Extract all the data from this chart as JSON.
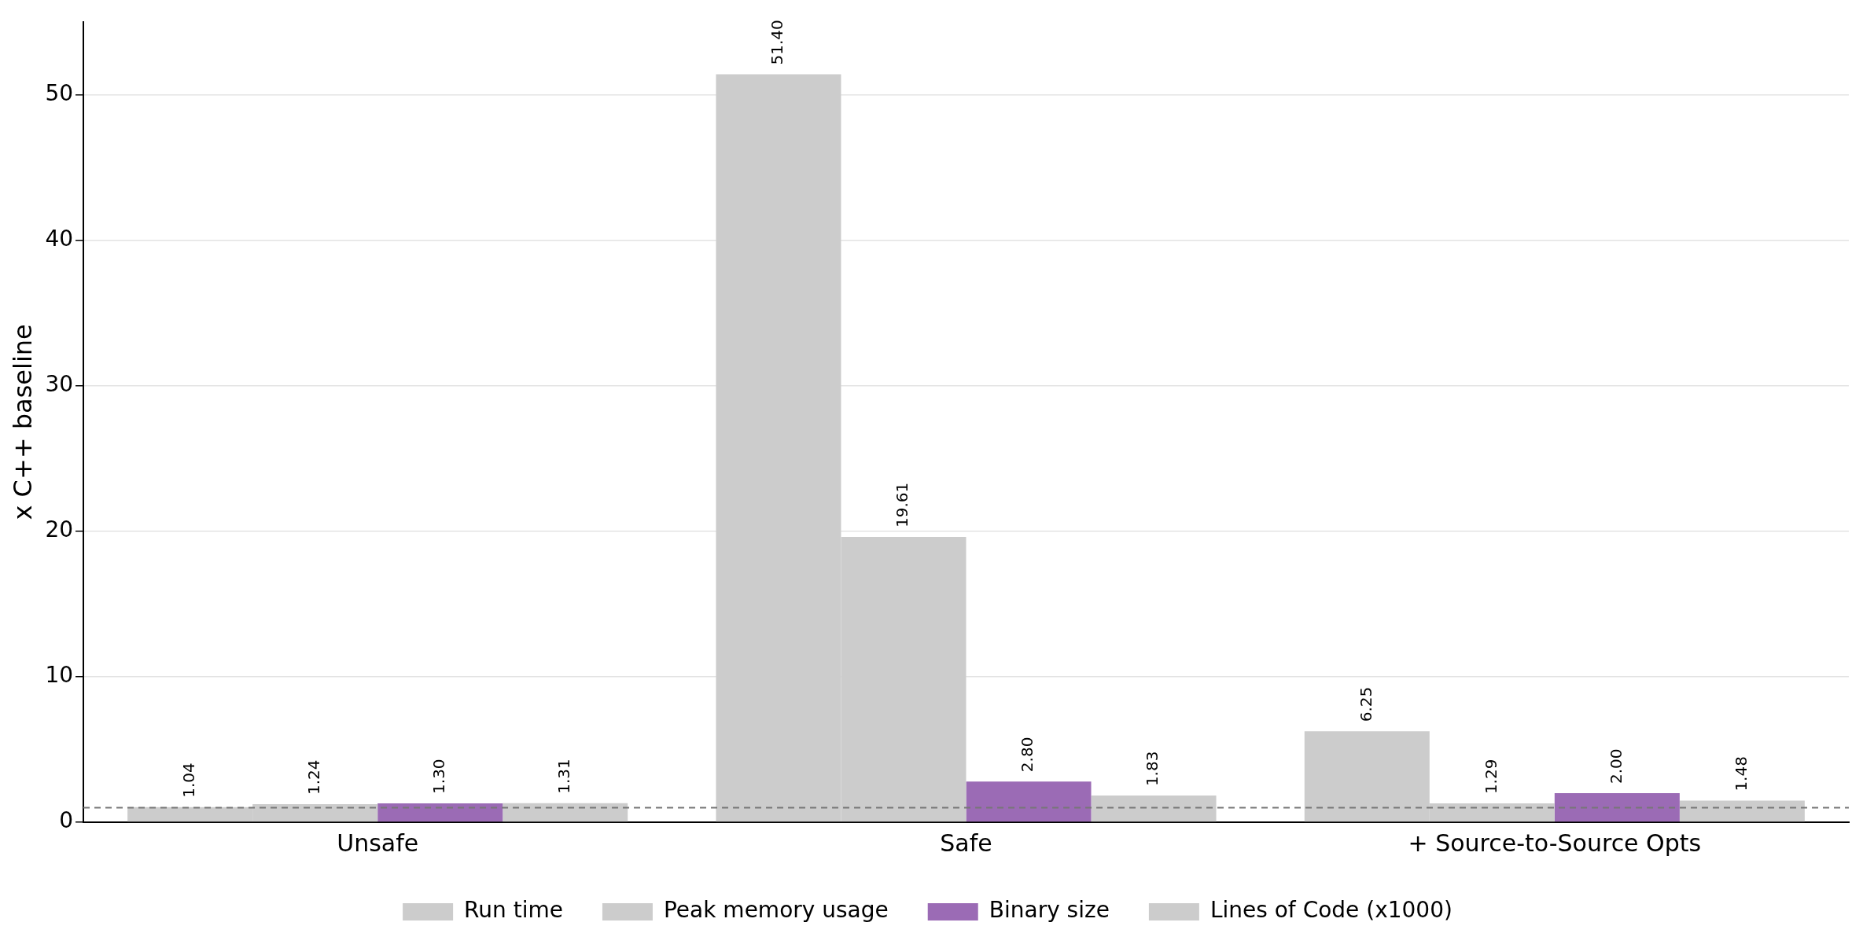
{
  "chart_data": {
    "type": "bar",
    "ylabel": "x C++ baseline",
    "categories": [
      "Unsafe",
      "Safe",
      "+ Source-to-Source Opts"
    ],
    "series": [
      {
        "name": "Run time",
        "color": "#cccccc",
        "values": [
          1.04,
          51.4,
          6.25
        ]
      },
      {
        "name": "Peak memory usage",
        "color": "#cccccc",
        "values": [
          1.24,
          19.61,
          1.29
        ]
      },
      {
        "name": "Binary size",
        "color": "#9b6bb5",
        "values": [
          1.3,
          2.8,
          2.0
        ]
      },
      {
        "name": "Lines of Code (x1000)",
        "color": "#cccccc",
        "values": [
          1.31,
          1.83,
          1.48
        ]
      }
    ],
    "value_labels": [
      [
        "1.04",
        "51.40",
        "6.25"
      ],
      [
        "1.24",
        "19.61",
        "1.29"
      ],
      [
        "1.30",
        "2.80",
        "2.00"
      ],
      [
        "1.31",
        "1.83",
        "1.48"
      ]
    ],
    "ylim": [
      0,
      55
    ],
    "yticks": [
      0,
      10,
      20,
      30,
      40,
      50
    ],
    "grid": "y",
    "legend": "bottom",
    "ref_lines": [
      {
        "axis": "y",
        "value": 1,
        "color": "#777777",
        "line_style": "dashed"
      }
    ]
  }
}
